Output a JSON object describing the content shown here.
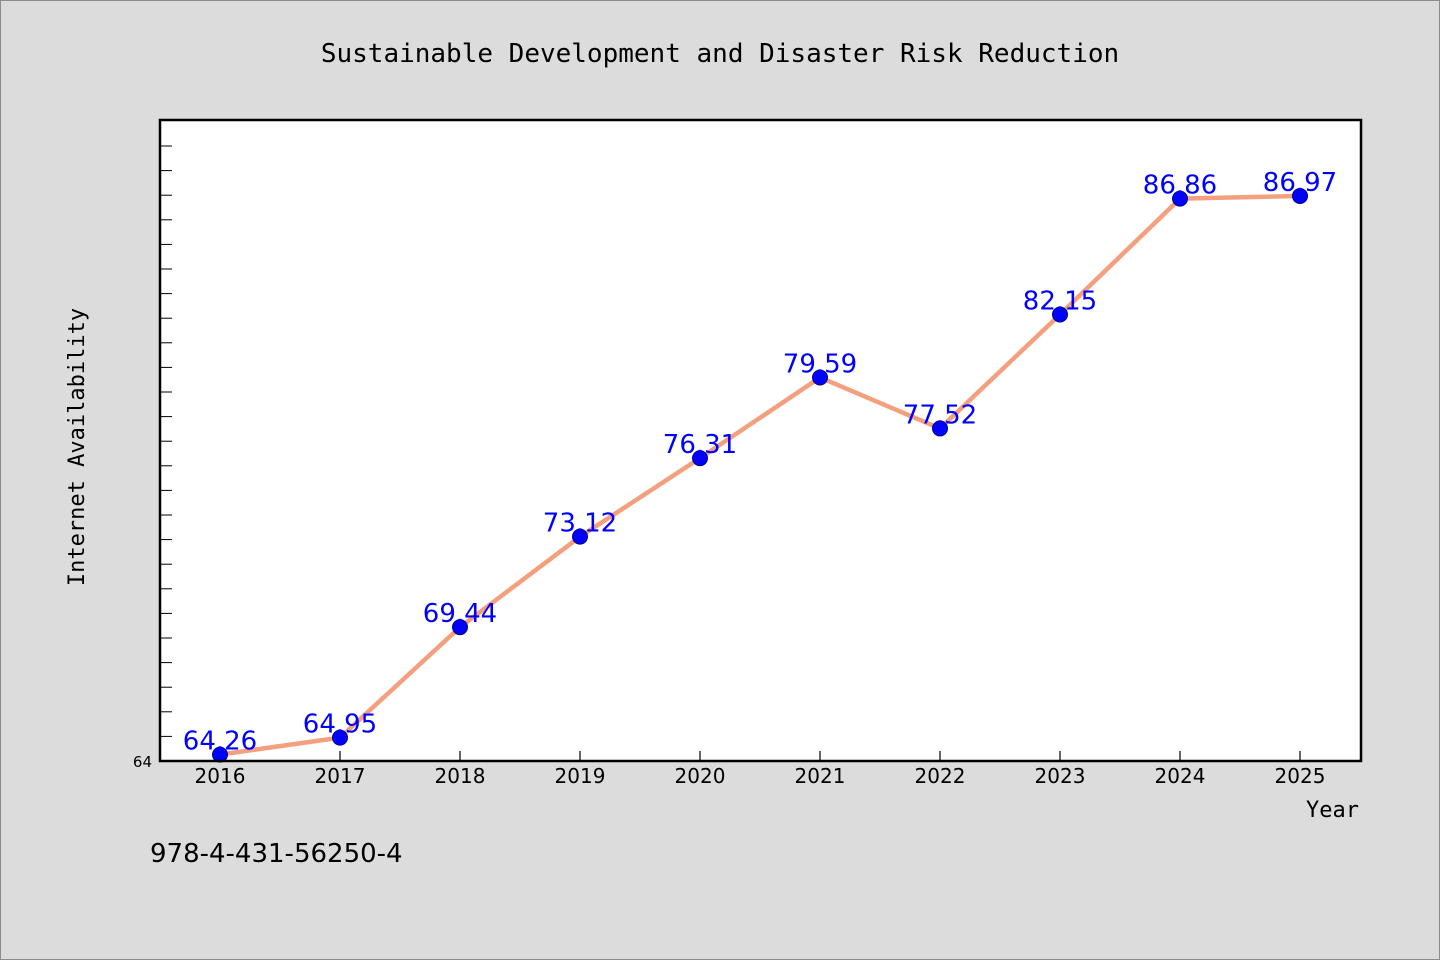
{
  "chart_data": {
    "type": "line",
    "title": "Sustainable Development and Disaster Risk Reduction",
    "xlabel": "Year",
    "ylabel": "Internet Availability",
    "categories": [
      "2016",
      "2017",
      "2018",
      "2019",
      "2020",
      "2021",
      "2022",
      "2023",
      "2024",
      "2025"
    ],
    "values": [
      64.26,
      64.95,
      69.44,
      73.12,
      76.31,
      79.59,
      77.52,
      82.15,
      86.86,
      86.97
    ],
    "data_labels": [
      "64.26",
      "64.95",
      "69.44",
      "73.12",
      "76.31",
      "79.59",
      "77.52",
      "82.15",
      "86.86",
      "86.97"
    ],
    "ylim": [
      64,
      90
    ],
    "y_tick_labels": [
      "64"
    ],
    "grid": false,
    "legend": "none",
    "colors": {
      "line": "#f4a07e",
      "marker": "#0000ff",
      "marker_edge": "#00008b",
      "data_label": "#0000ff",
      "background": "#dcdcdc",
      "plot_background": "#ffffff"
    }
  },
  "footer_text": "978-4-431-56250-4"
}
